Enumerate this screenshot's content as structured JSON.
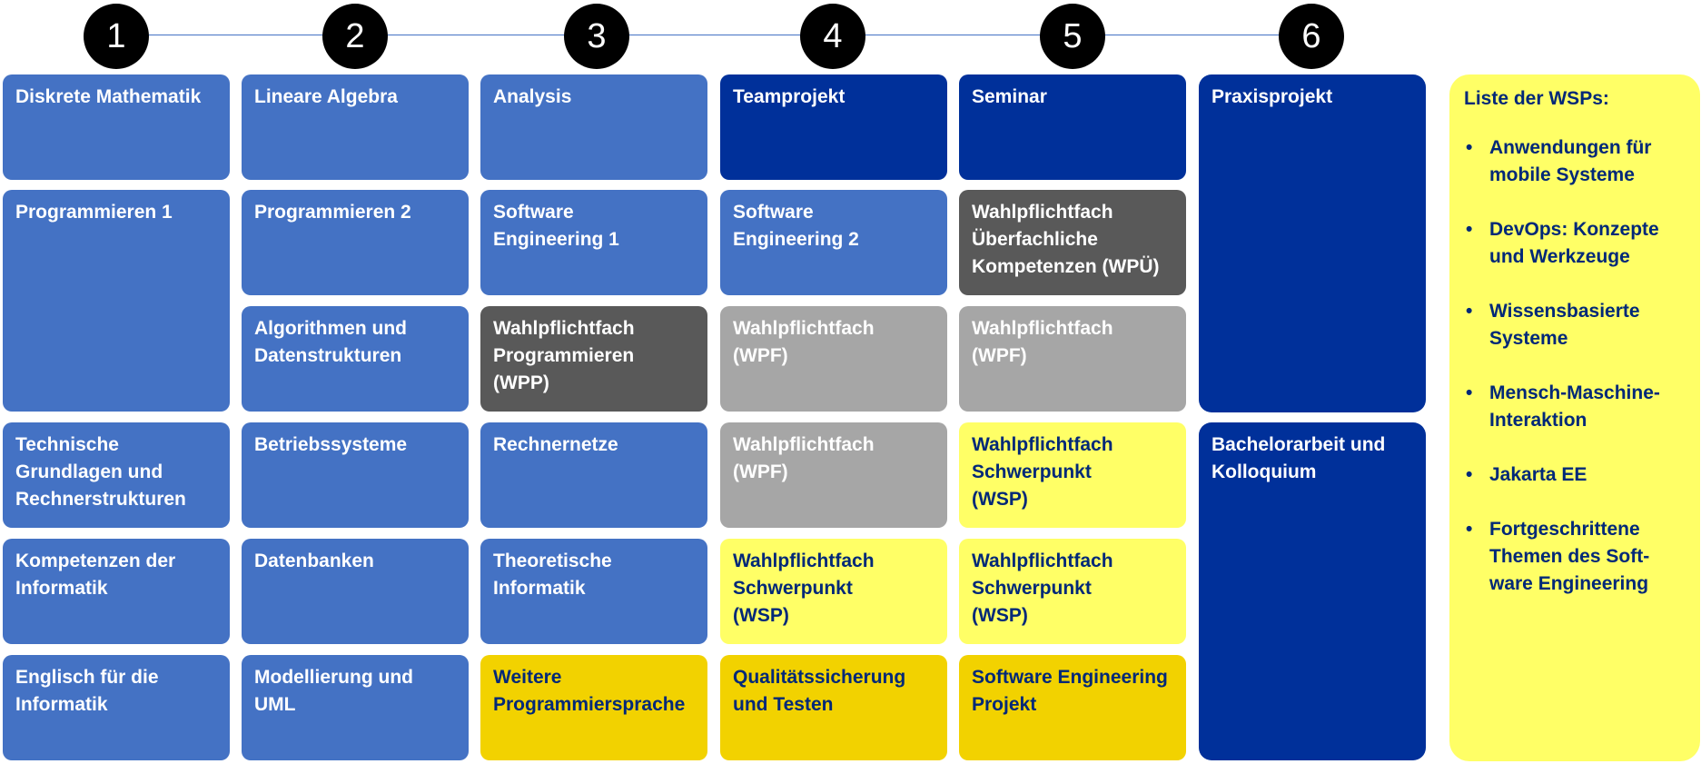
{
  "colors": {
    "medium_blue": "#4472c4",
    "dark_blue": "#00309a",
    "dark_gray": "#595959",
    "light_gray": "#a6a6a6",
    "light_yellow": "#ffff66",
    "gold": "#f2d200",
    "white_text": "#ffffff",
    "navy_text": "#002878"
  },
  "semesters": [
    "1",
    "2",
    "3",
    "4",
    "5",
    "6"
  ],
  "modules": [
    {
      "label": "Diskrete Mathematik",
      "style": "medium_blue",
      "col": 0,
      "row": 0,
      "span": 1
    },
    {
      "label": "Programmieren 1",
      "style": "medium_blue",
      "col": 0,
      "row": 1,
      "span": 2
    },
    {
      "label": "Technische\nGrundlagen und\nRechnerstrukturen",
      "style": "medium_blue",
      "col": 0,
      "row": 3,
      "span": 1
    },
    {
      "label": "Kompetenzen der\nInformatik",
      "style": "medium_blue",
      "col": 0,
      "row": 4,
      "span": 1
    },
    {
      "label": "Englisch für die\nInformatik",
      "style": "medium_blue",
      "col": 0,
      "row": 5,
      "span": 1
    },
    {
      "label": "Lineare Algebra",
      "style": "medium_blue",
      "col": 1,
      "row": 0,
      "span": 1
    },
    {
      "label": "Programmieren 2",
      "style": "medium_blue",
      "col": 1,
      "row": 1,
      "span": 1
    },
    {
      "label": "Algorithmen und\nDatenstrukturen",
      "style": "medium_blue",
      "col": 1,
      "row": 2,
      "span": 1
    },
    {
      "label": "Betriebssysteme",
      "style": "medium_blue",
      "col": 1,
      "row": 3,
      "span": 1
    },
    {
      "label": "Datenbanken",
      "style": "medium_blue",
      "col": 1,
      "row": 4,
      "span": 1
    },
    {
      "label": "Modellierung und\nUML",
      "style": "medium_blue",
      "col": 1,
      "row": 5,
      "span": 1
    },
    {
      "label": "Analysis",
      "style": "medium_blue",
      "col": 2,
      "row": 0,
      "span": 1
    },
    {
      "label": "Software\nEngineering 1",
      "style": "medium_blue",
      "col": 2,
      "row": 1,
      "span": 1
    },
    {
      "label": "Wahlpflichtfach\nProgrammieren\n(WPP)",
      "style": "dark_gray",
      "col": 2,
      "row": 2,
      "span": 1
    },
    {
      "label": "Rechnernetze",
      "style": "medium_blue",
      "col": 2,
      "row": 3,
      "span": 1
    },
    {
      "label": "Theoretische\nInformatik",
      "style": "medium_blue",
      "col": 2,
      "row": 4,
      "span": 1
    },
    {
      "label": "Weitere\nProgrammiersprache",
      "style": "gold",
      "col": 2,
      "row": 5,
      "span": 1
    },
    {
      "label": "Teamprojekt",
      "style": "dark_blue",
      "col": 3,
      "row": 0,
      "span": 1
    },
    {
      "label": "Software\nEngineering 2",
      "style": "medium_blue",
      "col": 3,
      "row": 1,
      "span": 1
    },
    {
      "label": "Wahlpflichtfach\n(WPF)",
      "style": "light_gray",
      "col": 3,
      "row": 2,
      "span": 1
    },
    {
      "label": "Wahlpflichtfach\n(WPF)",
      "style": "light_gray",
      "col": 3,
      "row": 3,
      "span": 1
    },
    {
      "label": "Wahlpflichtfach\nSchwerpunkt\n(WSP)",
      "style": "light_yellow",
      "col": 3,
      "row": 4,
      "span": 1
    },
    {
      "label": "Qualitätssicherung\nund Testen",
      "style": "gold",
      "col": 3,
      "row": 5,
      "span": 1
    },
    {
      "label": "Seminar",
      "style": "dark_blue",
      "col": 4,
      "row": 0,
      "span": 1
    },
    {
      "label": "Wahlpflichtfach\nÜberfachliche\nKompetenzen (WPÜ)",
      "style": "dark_gray",
      "col": 4,
      "row": 1,
      "span": 1
    },
    {
      "label": "Wahlpflichtfach\n(WPF)",
      "style": "light_gray",
      "col": 4,
      "row": 2,
      "span": 1
    },
    {
      "label": "Wahlpflichtfach\nSchwerpunkt\n(WSP)",
      "style": "light_yellow",
      "col": 4,
      "row": 3,
      "span": 1
    },
    {
      "label": "Wahlpflichtfach\nSchwerpunkt\n(WSP)",
      "style": "light_yellow",
      "col": 4,
      "row": 4,
      "span": 1
    },
    {
      "label": "Software Engineering\nProjekt",
      "style": "gold",
      "col": 4,
      "row": 5,
      "span": 1
    },
    {
      "label": "Praxisprojekt",
      "style": "dark_blue",
      "col": 5,
      "row": 0,
      "span": 3
    },
    {
      "label": "Bachelorarbeit und\nKolloquium",
      "style": "dark_blue",
      "col": 5,
      "row": 3,
      "span": 3
    }
  ],
  "wsp_list": {
    "title": "Liste der WSPs:",
    "items": [
      "Anwendungen für\nmobile Systeme",
      "DevOps: Konzepte\nund Werkzeuge",
      "Wissensbasierte\nSysteme",
      "Mensch-Maschine-\nInteraktion",
      "Jakarta EE",
      "Fortgeschrittene\nThemen des Soft-\nware Engineering"
    ]
  }
}
